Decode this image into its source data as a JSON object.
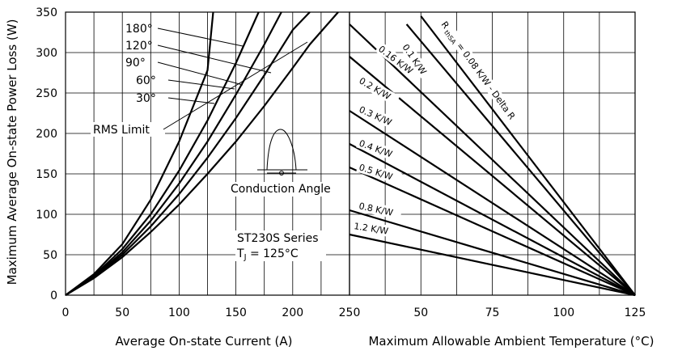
{
  "chart_data": [
    {
      "type": "line",
      "xlabel": "Average On-state Current (A)",
      "ylabel": "Maximum Average On-state Power Loss (W)",
      "xlim": [
        0,
        250
      ],
      "ylim": [
        0,
        350
      ],
      "xticks": [
        "0",
        "50",
        "100",
        "150",
        "200",
        "250"
      ],
      "yticks": [
        "0",
        "50",
        "100",
        "150",
        "200",
        "250",
        "300",
        "350"
      ],
      "grid": true,
      "series": [
        {
          "name": "180°",
          "x": [
            0,
            25,
            50,
            75,
            100,
            125,
            150,
            175,
            200,
            215,
            240
          ],
          "y": [
            0,
            21,
            47,
            78,
            112,
            150,
            190,
            234,
            281,
            310,
            350
          ]
        },
        {
          "name": "120°",
          "x": [
            0,
            25,
            50,
            75,
            100,
            125,
            150,
            175,
            200,
            215
          ],
          "y": [
            0,
            22,
            50,
            85,
            125,
            170,
            219,
            272,
            328,
            350
          ]
        },
        {
          "name": "90°",
          "x": [
            0,
            25,
            50,
            75,
            100,
            125,
            150,
            175,
            190
          ],
          "y": [
            0,
            23,
            53,
            92,
            138,
            190,
            248,
            310,
            350
          ]
        },
        {
          "name": "60°",
          "x": [
            0,
            25,
            50,
            75,
            100,
            125,
            150,
            170
          ],
          "y": [
            0,
            24,
            57,
            100,
            154,
            216,
            287,
            350
          ]
        },
        {
          "name": "30°",
          "x": [
            0,
            25,
            50,
            75,
            100,
            125,
            130
          ],
          "y": [
            0,
            26,
            63,
            118,
            190,
            278,
            350
          ]
        }
      ],
      "annotations": [
        "RMS Limit",
        "Conduction Angle",
        "ST230S Series",
        "T",
        "J",
        " = 125°C"
      ]
    },
    {
      "type": "line",
      "xlabel": "Maximum Allowable Ambient Temperature (°C)",
      "xlim": [
        25,
        125
      ],
      "ylim": [
        0,
        350
      ],
      "xticks": [
        "25",
        "50",
        "75",
        "100",
        "125"
      ],
      "grid": true,
      "lines_end": [
        125,
        0
      ],
      "series": [
        {
          "name": "R thSA = 0.08 K/W - Delta R",
          "x": [
            50,
            125
          ],
          "y": [
            345,
            0
          ]
        },
        {
          "name": "0.1 K/W",
          "x": [
            45,
            125
          ],
          "y": [
            335,
            0
          ]
        },
        {
          "name": "0.16 K/W",
          "x": [
            25,
            125
          ],
          "y": [
            335,
            0
          ]
        },
        {
          "name": "0.2 K/W",
          "x": [
            25,
            125
          ],
          "y": [
            295,
            0
          ]
        },
        {
          "name": "0.3 K/W",
          "x": [
            25,
            125
          ],
          "y": [
            228,
            0
          ]
        },
        {
          "name": "0.4 K/W",
          "x": [
            25,
            125
          ],
          "y": [
            187,
            0
          ]
        },
        {
          "name": "0.5 K/W",
          "x": [
            25,
            125
          ],
          "y": [
            158,
            0
          ]
        },
        {
          "name": "0.8 K/W",
          "x": [
            25,
            125
          ],
          "y": [
            105,
            0
          ]
        },
        {
          "name": "1.2 K/W",
          "x": [
            25,
            125
          ],
          "y": [
            75,
            0
          ]
        }
      ],
      "label_rthsa": "R",
      "label_thsa_sub": "thSA",
      "label_rthsa_rest": " = 0.08 K/W - Delta R"
    }
  ]
}
